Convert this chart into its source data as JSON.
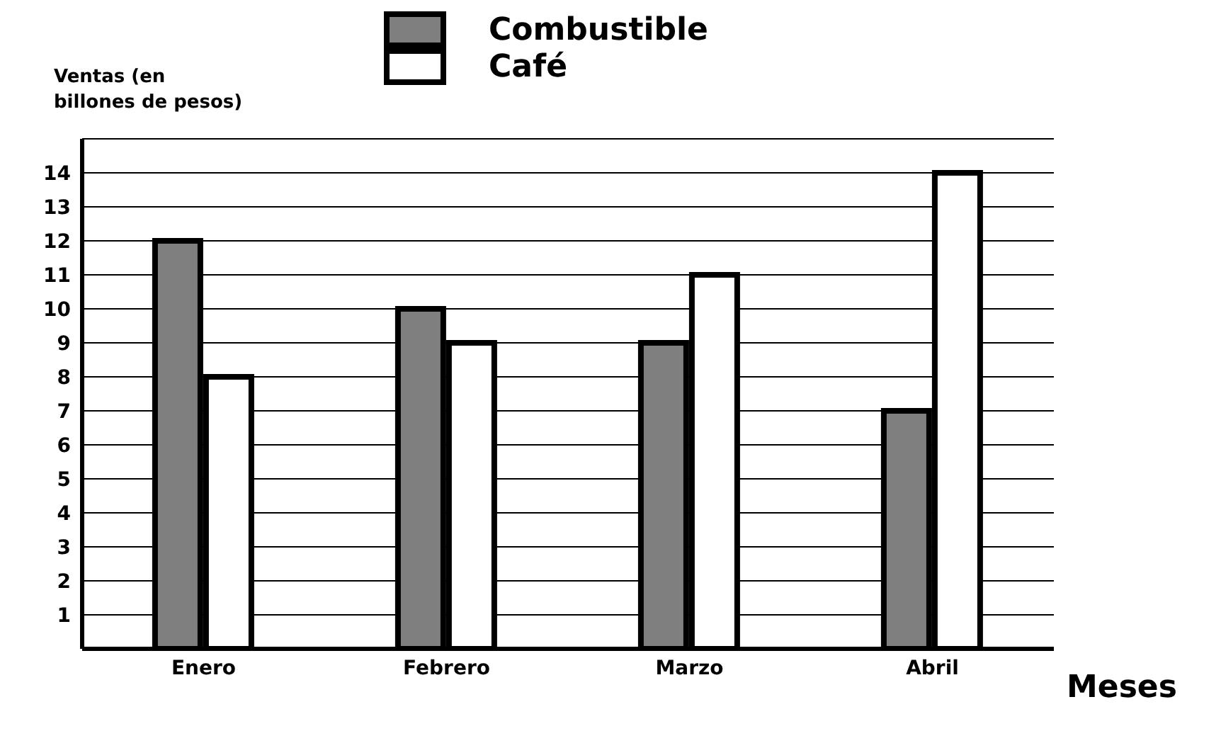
{
  "chart_data": {
    "type": "bar",
    "ylabel": "Ventas (en billones de pesos)",
    "xlabel": "Meses",
    "categories": [
      "Enero",
      "Febrero",
      "Marzo",
      "Abril"
    ],
    "series": [
      {
        "name": "Combustible",
        "color": "#7f7f7f",
        "values": [
          12,
          10,
          9,
          7
        ]
      },
      {
        "name": "Café",
        "color": "#ffffff",
        "values": [
          8,
          9,
          11,
          14
        ]
      }
    ],
    "ylim": [
      0,
      15
    ],
    "yticks": [
      1,
      2,
      3,
      4,
      5,
      6,
      7,
      8,
      9,
      10,
      11,
      12,
      13,
      14
    ],
    "grid": "y",
    "legend": "top"
  }
}
